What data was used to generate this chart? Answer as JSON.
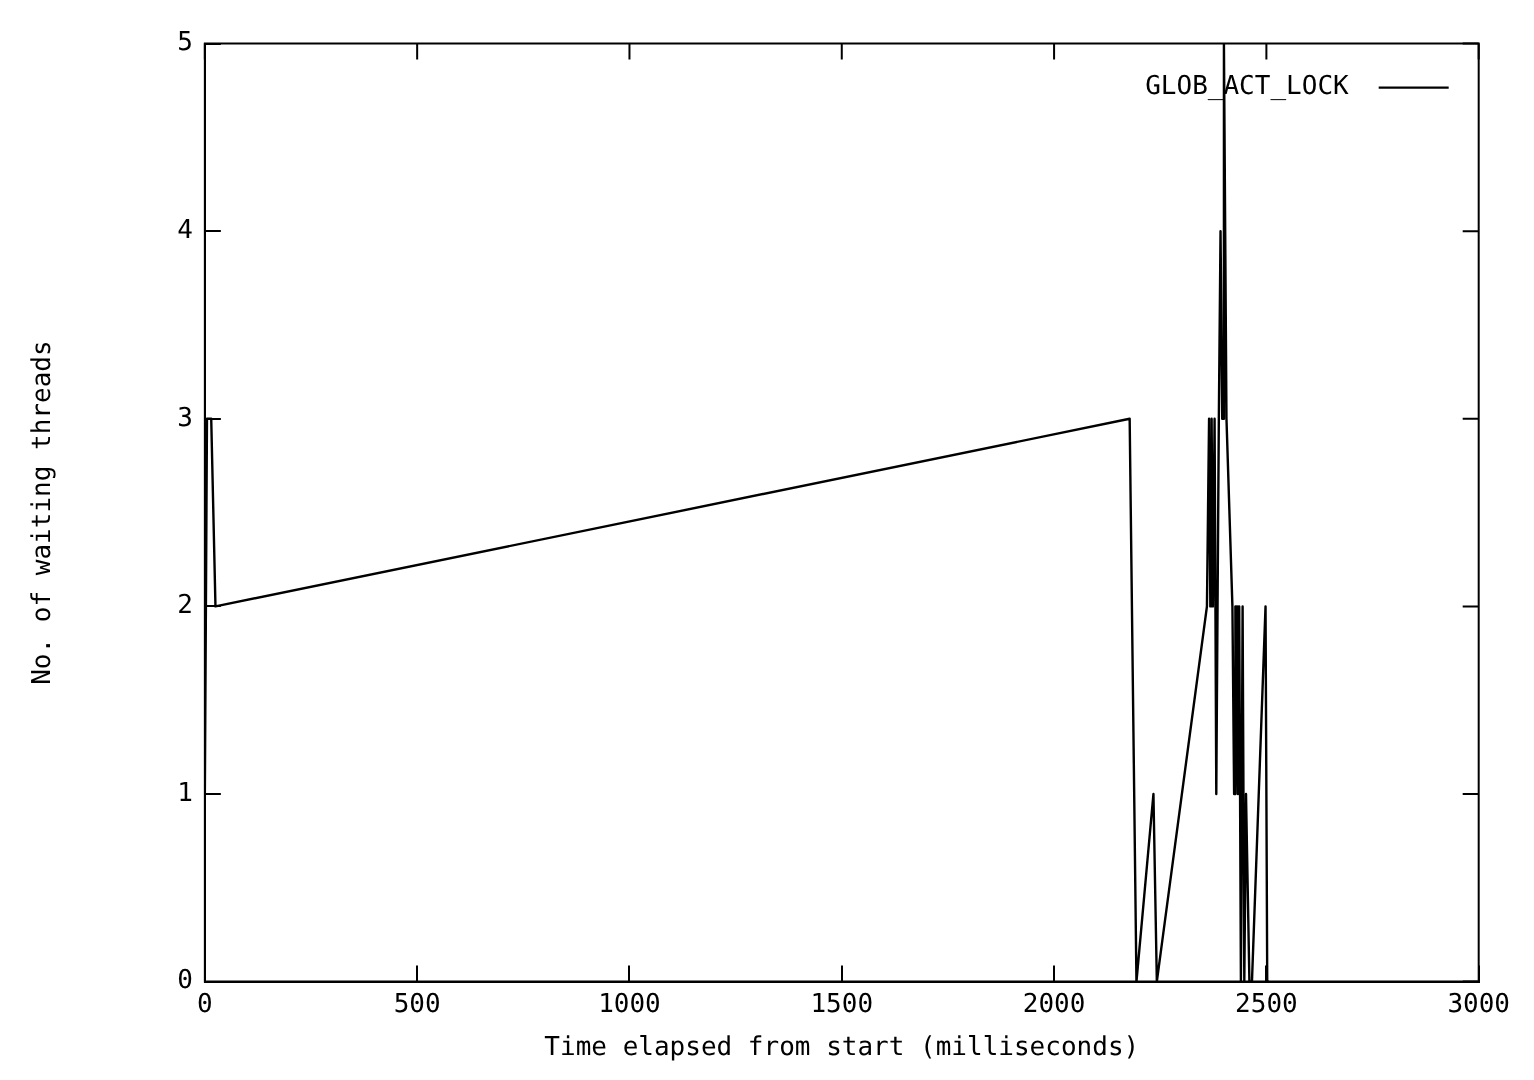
{
  "chart_data": {
    "type": "line",
    "xlabel": "Time elapsed from start (milliseconds)",
    "ylabel": "No. of waiting threads",
    "x": [
      0,
      5,
      15,
      25,
      2178,
      2194,
      2234,
      2242,
      2360,
      2365,
      2368,
      2371,
      2374,
      2378,
      2382,
      2388,
      2392,
      2396,
      2400,
      2403,
      2406,
      2420,
      2424,
      2426,
      2428,
      2430,
      2433,
      2436,
      2440,
      2444,
      2448,
      2452,
      2460,
      2466,
      2498,
      2502,
      2506
    ],
    "series": [
      {
        "name": "GLOB_ACT_LOCK",
        "color": "#000000",
        "values": [
          1,
          3,
          3,
          2,
          3,
          0,
          1,
          0,
          2,
          3,
          2,
          3,
          2,
          3,
          1,
          3,
          4,
          3,
          5,
          4,
          3,
          2,
          1,
          2,
          1,
          2,
          1,
          2,
          0,
          2,
          0,
          1,
          0,
          0,
          2,
          0,
          0
        ]
      }
    ],
    "xlim": [
      0,
      3000
    ],
    "xticks": [
      0,
      500,
      1000,
      1500,
      2000,
      2500,
      3000
    ],
    "ylim": [
      0,
      5
    ],
    "yticks": [
      0,
      1,
      2,
      3,
      4,
      5
    ],
    "grid": false,
    "legend": "top right",
    "marker": "none",
    "line_style": "solid"
  }
}
